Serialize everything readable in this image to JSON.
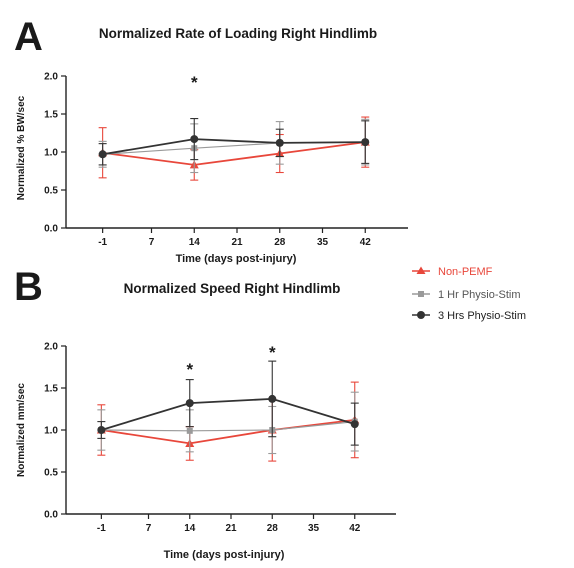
{
  "figure": {
    "legend": {
      "entries": [
        "Non-PEMF",
        "1 Hr Physio-Stim",
        "3 Hrs Physio-Stim"
      ]
    }
  },
  "colors": {
    "non_pemf": "#e8473b",
    "one_hr": "#9a9a9a",
    "three_hrs": "#333333",
    "axis": "#222222"
  },
  "chart_data": [
    {
      "panel": "A",
      "type": "line",
      "title": "Normalized Rate of Loading Right Hindlimb",
      "xlabel": "Time (days post-injury)",
      "ylabel": "Normalized % BW/sec",
      "xlim": [
        -7,
        49
      ],
      "ylim": [
        0,
        2.0
      ],
      "x_ticks": [
        -1,
        7,
        14,
        21,
        28,
        35,
        42
      ],
      "y_ticks": [
        "0.0",
        "0.5",
        "1.0",
        "1.5",
        "2.0"
      ],
      "x": [
        -1,
        14,
        28,
        42
      ],
      "grid": false,
      "legend_position": "right",
      "series": [
        {
          "name": "Non-PEMF",
          "values": [
            0.99,
            0.83,
            0.98,
            1.13
          ],
          "error": [
            0.33,
            0.2,
            0.25,
            0.33
          ]
        },
        {
          "name": "1 Hr Physio-Stim",
          "values": [
            0.97,
            1.05,
            1.12,
            1.13
          ],
          "error": [
            0.17,
            0.32,
            0.28,
            0.3
          ]
        },
        {
          "name": "3 Hrs Physio-Stim",
          "values": [
            0.97,
            1.17,
            1.12,
            1.13
          ],
          "error": [
            0.14,
            0.27,
            0.18,
            0.28
          ]
        }
      ],
      "annotations": [
        {
          "x": 14,
          "y": 1.95,
          "text": "*"
        }
      ]
    },
    {
      "panel": "B",
      "type": "line",
      "title": "Normalized Speed Right Hindlimb",
      "xlabel": "Time (days post-injury)",
      "ylabel": "Normalized mm/sec",
      "xlim": [
        -7,
        49
      ],
      "ylim": [
        0,
        2.0
      ],
      "x_ticks": [
        -1,
        7,
        14,
        21,
        28,
        35,
        42
      ],
      "y_ticks": [
        "0.0",
        "0.5",
        "1.0",
        "1.5",
        "2.0"
      ],
      "x": [
        -1,
        14,
        28,
        42
      ],
      "grid": false,
      "legend_position": "right",
      "series": [
        {
          "name": "Non-PEMF",
          "values": [
            1.0,
            0.84,
            1.0,
            1.12
          ],
          "error": [
            0.3,
            0.2,
            0.37,
            0.45
          ]
        },
        {
          "name": "1 Hr Physio-Stim",
          "values": [
            1.0,
            0.99,
            1.0,
            1.1
          ],
          "error": [
            0.24,
            0.25,
            0.28,
            0.35
          ]
        },
        {
          "name": "3 Hrs Physio-Stim",
          "values": [
            1.0,
            1.32,
            1.37,
            1.07
          ],
          "error": [
            0.1,
            0.28,
            0.45,
            0.25
          ]
        }
      ],
      "annotations": [
        {
          "x": 14,
          "y": 1.75,
          "text": "*"
        },
        {
          "x": 28,
          "y": 1.95,
          "text": "*"
        }
      ]
    }
  ]
}
